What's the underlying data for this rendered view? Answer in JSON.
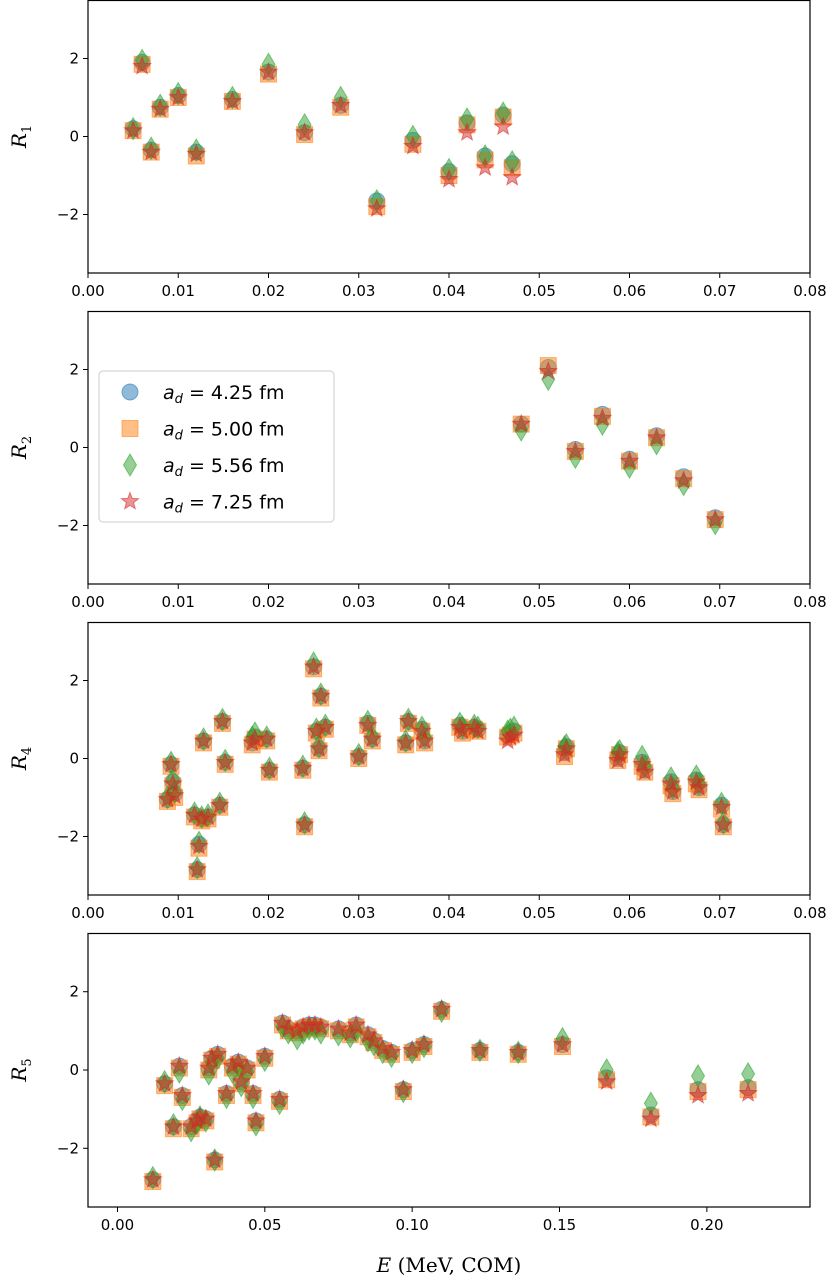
{
  "figure": {
    "xlabel_var": "E",
    "xlabel_rest": " (MeV, COM)"
  },
  "series_style": [
    {
      "key": "a425",
      "marker": "circle",
      "color": "#1f77b4"
    },
    {
      "key": "a500",
      "marker": "square",
      "color": "#ff7f0e"
    },
    {
      "key": "a556",
      "marker": "diamond",
      "color": "#2ca02c"
    },
    {
      "key": "a725",
      "marker": "star",
      "color": "#d62728"
    }
  ],
  "legend": {
    "entries": [
      {
        "var": "a",
        "sub": "d",
        "rest": " = 4.25 fm"
      },
      {
        "var": "a",
        "sub": "d",
        "rest": " = 5.00 fm"
      },
      {
        "var": "a",
        "sub": "d",
        "rest": " = 5.56 fm"
      },
      {
        "var": "a",
        "sub": "d",
        "rest": " = 7.25 fm"
      }
    ]
  },
  "chart_data": [
    {
      "type": "scatter",
      "ylabel_var": "R",
      "ylabel_sub": "1",
      "xlim": [
        0,
        0.08
      ],
      "ylim": [
        -3.5,
        3.5
      ],
      "xticks": [
        0,
        0.01,
        0.02,
        0.03,
        0.04,
        0.05,
        0.06,
        0.07,
        0.08
      ],
      "xtick_labels": [
        "0.00",
        "0.01",
        "0.02",
        "0.03",
        "0.04",
        "0.05",
        "0.06",
        "0.07",
        "0.08"
      ],
      "yticks": [
        -2,
        0,
        2
      ],
      "ytick_labels": [
        "−2",
        "0",
        "2"
      ],
      "x": [
        0.005,
        0.006,
        0.007,
        0.008,
        0.01,
        0.012,
        0.016,
        0.02,
        0.024,
        0.028,
        0.032,
        0.036,
        0.04,
        0.042,
        0.044,
        0.046,
        0.047
      ],
      "series": [
        {
          "name": "a_d = 4.25 fm",
          "values": [
            0.2,
            1.9,
            -0.35,
            0.75,
            1.05,
            -0.4,
            0.95,
            1.65,
            0.1,
            0.8,
            -1.65,
            -0.1,
            -0.9,
            0.35,
            -0.5,
            0.55,
            -0.7
          ]
        },
        {
          "name": "a_d = 5.00 fm",
          "values": [
            0.15,
            1.85,
            -0.4,
            0.7,
            1.0,
            -0.5,
            0.9,
            1.6,
            0.05,
            0.75,
            -1.8,
            -0.2,
            -1.0,
            0.3,
            -0.6,
            0.5,
            -0.8
          ]
        },
        {
          "name": "a_d = 5.56 fm",
          "values": [
            0.2,
            1.95,
            -0.3,
            0.8,
            1.1,
            -0.35,
            1.0,
            1.85,
            0.3,
            1.0,
            -1.65,
            0.0,
            -0.85,
            0.45,
            -0.5,
            0.6,
            -0.65
          ]
        },
        {
          "name": "a_d = 7.25 fm",
          "values": [
            0.15,
            1.8,
            -0.4,
            0.7,
            1.0,
            -0.45,
            0.9,
            1.65,
            0.1,
            0.8,
            -1.85,
            -0.25,
            -1.1,
            0.1,
            -0.8,
            0.25,
            -1.05
          ]
        }
      ]
    },
    {
      "type": "scatter",
      "ylabel_var": "R",
      "ylabel_sub": "2",
      "xlim": [
        0,
        0.08
      ],
      "ylim": [
        -3.5,
        3.5
      ],
      "xticks": [
        0,
        0.01,
        0.02,
        0.03,
        0.04,
        0.05,
        0.06,
        0.07,
        0.08
      ],
      "xtick_labels": [
        "0.00",
        "0.01",
        "0.02",
        "0.03",
        "0.04",
        "0.05",
        "0.06",
        "0.07",
        "0.08"
      ],
      "yticks": [
        -2,
        0,
        2
      ],
      "ytick_labels": [
        "−2",
        "0",
        "2"
      ],
      "x": [
        0.048,
        0.051,
        0.054,
        0.057,
        0.06,
        0.063,
        0.066,
        0.0695
      ],
      "series": [
        {
          "name": "a_d = 4.25 fm",
          "values": [
            0.6,
            2.05,
            -0.05,
            0.85,
            -0.3,
            0.3,
            -0.75,
            -1.8
          ]
        },
        {
          "name": "a_d = 5.00 fm",
          "values": [
            0.6,
            2.1,
            -0.1,
            0.8,
            -0.35,
            0.25,
            -0.8,
            -1.85
          ]
        },
        {
          "name": "a_d = 5.56 fm",
          "values": [
            0.45,
            1.75,
            -0.25,
            0.6,
            -0.5,
            0.1,
            -0.95,
            -1.95
          ]
        },
        {
          "name": "a_d = 7.25 fm",
          "values": [
            0.6,
            1.95,
            -0.1,
            0.75,
            -0.35,
            0.25,
            -0.85,
            -1.85
          ]
        }
      ]
    },
    {
      "type": "scatter",
      "ylabel_var": "R",
      "ylabel_sub": "4",
      "xlim": [
        0,
        0.08
      ],
      "ylim": [
        -3.5,
        3.5
      ],
      "xticks": [
        0,
        0.01,
        0.02,
        0.03,
        0.04,
        0.05,
        0.06,
        0.07,
        0.08
      ],
      "xtick_labels": [
        "0.00",
        "0.01",
        "0.02",
        "0.03",
        "0.04",
        "0.05",
        "0.06",
        "0.07",
        "0.08"
      ],
      "yticks": [
        -2,
        0,
        2
      ],
      "ytick_labels": [
        "−2",
        "0",
        "2"
      ],
      "x": [
        0.0088,
        0.0092,
        0.0094,
        0.0096,
        0.0118,
        0.0121,
        0.0123,
        0.0126,
        0.0128,
        0.0133,
        0.0146,
        0.0149,
        0.0152,
        0.0182,
        0.0185,
        0.0198,
        0.0201,
        0.0238,
        0.024,
        0.025,
        0.0253,
        0.0256,
        0.0258,
        0.0263,
        0.03,
        0.031,
        0.0315,
        0.0352,
        0.0355,
        0.037,
        0.0373,
        0.0412,
        0.0415,
        0.0428,
        0.0432,
        0.0465,
        0.0468,
        0.0472,
        0.0528,
        0.053,
        0.0587,
        0.0589,
        0.0614,
        0.0617,
        0.0646,
        0.0648,
        0.0674,
        0.0677,
        0.0702,
        0.0704
      ],
      "series": [
        {
          "name": "a_d = 4.25 fm",
          "values": [
            -1.05,
            -0.15,
            -0.6,
            -0.9,
            -1.45,
            -2.85,
            -2.2,
            -1.55,
            0.45,
            -1.5,
            -1.2,
            0.95,
            -0.1,
            0.4,
            0.55,
            0.5,
            -0.3,
            -0.25,
            -1.7,
            2.35,
            0.7,
            0.25,
            1.6,
            0.8,
            0.05,
            0.9,
            0.5,
            0.4,
            0.95,
            0.75,
            0.45,
            0.85,
            0.7,
            0.8,
            0.75,
            0.6,
            0.65,
            0.7,
            0.15,
            0.3,
            0.0,
            0.15,
            -0.1,
            -0.3,
            -0.6,
            -0.85,
            -0.55,
            -0.75,
            -1.2,
            -1.7
          ]
        },
        {
          "name": "a_d = 5.00 fm",
          "values": [
            -1.1,
            -0.2,
            -0.7,
            -1.0,
            -1.5,
            -2.9,
            -2.3,
            -1.6,
            0.4,
            -1.55,
            -1.25,
            0.9,
            -0.15,
            0.35,
            0.5,
            0.45,
            -0.35,
            -0.3,
            -1.75,
            2.3,
            0.65,
            0.2,
            1.55,
            0.75,
            0.0,
            0.85,
            0.45,
            0.35,
            0.9,
            0.7,
            0.4,
            0.8,
            0.65,
            0.75,
            0.7,
            0.55,
            0.6,
            0.65,
            0.05,
            0.25,
            -0.05,
            0.1,
            -0.2,
            -0.35,
            -0.7,
            -0.9,
            -0.65,
            -0.8,
            -1.3,
            -1.75
          ]
        },
        {
          "name": "a_d = 5.56 fm",
          "values": [
            -1.0,
            -0.1,
            -0.55,
            -0.85,
            -1.4,
            -2.8,
            -2.15,
            -1.5,
            0.5,
            -1.45,
            -1.15,
            1.0,
            -0.05,
            0.55,
            0.65,
            0.55,
            -0.25,
            -0.2,
            -1.65,
            2.45,
            0.75,
            0.3,
            1.65,
            0.85,
            0.1,
            0.95,
            0.55,
            0.45,
            1.0,
            0.8,
            0.55,
            0.9,
            0.8,
            0.85,
            0.8,
            0.7,
            0.75,
            0.8,
            0.3,
            0.35,
            0.15,
            0.2,
            0.05,
            -0.2,
            -0.5,
            -0.75,
            -0.45,
            -0.65,
            -1.15,
            -1.65
          ]
        },
        {
          "name": "a_d = 7.25 fm",
          "values": [
            -1.05,
            -0.15,
            -0.65,
            -0.95,
            -1.45,
            -2.85,
            -2.25,
            -1.55,
            0.45,
            -1.5,
            -1.2,
            0.95,
            -0.1,
            0.4,
            0.5,
            0.5,
            -0.3,
            -0.25,
            -1.7,
            2.35,
            0.7,
            0.25,
            1.6,
            0.8,
            0.05,
            0.85,
            0.5,
            0.4,
            0.95,
            0.7,
            0.45,
            0.8,
            0.7,
            0.8,
            0.7,
            0.45,
            0.55,
            0.6,
            0.1,
            0.25,
            -0.05,
            0.1,
            -0.15,
            -0.35,
            -0.65,
            -0.85,
            -0.6,
            -0.75,
            -1.25,
            -1.7
          ]
        }
      ]
    },
    {
      "type": "scatter",
      "ylabel_var": "R",
      "ylabel_sub": "5",
      "xlim": [
        -0.01,
        0.235
      ],
      "ylim": [
        -3.5,
        3.5
      ],
      "xticks": [
        0,
        0.05,
        0.1,
        0.15,
        0.2
      ],
      "xtick_labels": [
        "0.00",
        "0.05",
        "0.10",
        "0.15",
        "0.20"
      ],
      "yticks": [
        -2,
        0,
        2
      ],
      "ytick_labels": [
        "−2",
        "0",
        "2"
      ],
      "x": [
        0.012,
        0.016,
        0.019,
        0.021,
        0.022,
        0.025,
        0.027,
        0.028,
        0.03,
        0.031,
        0.032,
        0.034,
        0.033,
        0.037,
        0.039,
        0.041,
        0.042,
        0.044,
        0.046,
        0.047,
        0.05,
        0.055,
        0.056,
        0.058,
        0.061,
        0.063,
        0.065,
        0.067,
        0.069,
        0.075,
        0.079,
        0.081,
        0.085,
        0.087,
        0.09,
        0.093,
        0.097,
        0.1,
        0.104,
        0.11,
        0.123,
        0.136,
        0.151,
        0.166,
        0.181,
        0.197,
        0.214
      ],
      "series": [
        {
          "name": "a_d = 4.25 fm",
          "values": [
            -2.8,
            -0.35,
            -1.45,
            0.1,
            -0.65,
            -1.45,
            -1.3,
            -1.2,
            -1.25,
            0.05,
            0.3,
            0.4,
            -2.3,
            -0.6,
            0.1,
            0.2,
            -0.3,
            0.05,
            -0.6,
            -1.3,
            0.35,
            -0.75,
            1.2,
            1.05,
            1.0,
            1.1,
            1.15,
            1.15,
            1.1,
            1.05,
            0.95,
            1.15,
            0.9,
            0.75,
            0.55,
            0.45,
            -0.5,
            0.5,
            0.65,
            1.55,
            0.5,
            0.45,
            0.65,
            -0.2,
            -1.15,
            -0.5,
            -0.45
          ]
        },
        {
          "name": "a_d = 5.00 fm",
          "values": [
            -2.85,
            -0.4,
            -1.5,
            0.05,
            -0.7,
            -1.5,
            -1.35,
            -1.25,
            -1.3,
            0.0,
            0.25,
            0.35,
            -2.35,
            -0.65,
            0.05,
            0.15,
            -0.35,
            0.0,
            -0.65,
            -1.35,
            0.3,
            -0.8,
            1.15,
            1.0,
            0.95,
            1.05,
            1.1,
            1.1,
            1.05,
            1.0,
            0.9,
            1.1,
            0.85,
            0.7,
            0.5,
            0.4,
            -0.55,
            0.45,
            0.6,
            1.5,
            0.45,
            0.4,
            0.6,
            -0.25,
            -1.2,
            -0.55,
            -0.5
          ]
        },
        {
          "name": "a_d = 5.56 fm",
          "values": [
            -2.75,
            -0.3,
            -1.4,
            -0.05,
            -0.75,
            -1.55,
            -1.35,
            -1.2,
            -1.3,
            -0.1,
            0.2,
            0.3,
            -2.3,
            -0.7,
            -0.05,
            0.1,
            -0.4,
            -0.05,
            -0.7,
            -1.4,
            0.25,
            -0.85,
            1.1,
            0.95,
            0.8,
            0.95,
            1.05,
            1.05,
            0.95,
            0.9,
            0.85,
            1.0,
            0.75,
            0.65,
            0.45,
            0.35,
            -0.55,
            0.45,
            0.6,
            1.5,
            0.5,
            0.45,
            0.8,
            0.0,
            -0.85,
            -0.15,
            -0.1
          ]
        },
        {
          "name": "a_d = 7.25 fm",
          "values": [
            -2.8,
            -0.35,
            -1.45,
            0.1,
            -0.65,
            -1.45,
            -1.3,
            -1.2,
            -1.25,
            0.05,
            0.3,
            0.4,
            -2.3,
            -0.6,
            0.1,
            0.2,
            -0.3,
            0.05,
            -0.6,
            -1.3,
            0.35,
            -0.75,
            1.2,
            1.05,
            1.0,
            1.1,
            1.15,
            1.15,
            1.1,
            1.05,
            0.95,
            1.15,
            0.9,
            0.75,
            0.55,
            0.45,
            -0.5,
            0.5,
            0.65,
            1.55,
            0.5,
            0.45,
            0.65,
            -0.3,
            -1.25,
            -0.65,
            -0.6
          ]
        }
      ]
    }
  ]
}
